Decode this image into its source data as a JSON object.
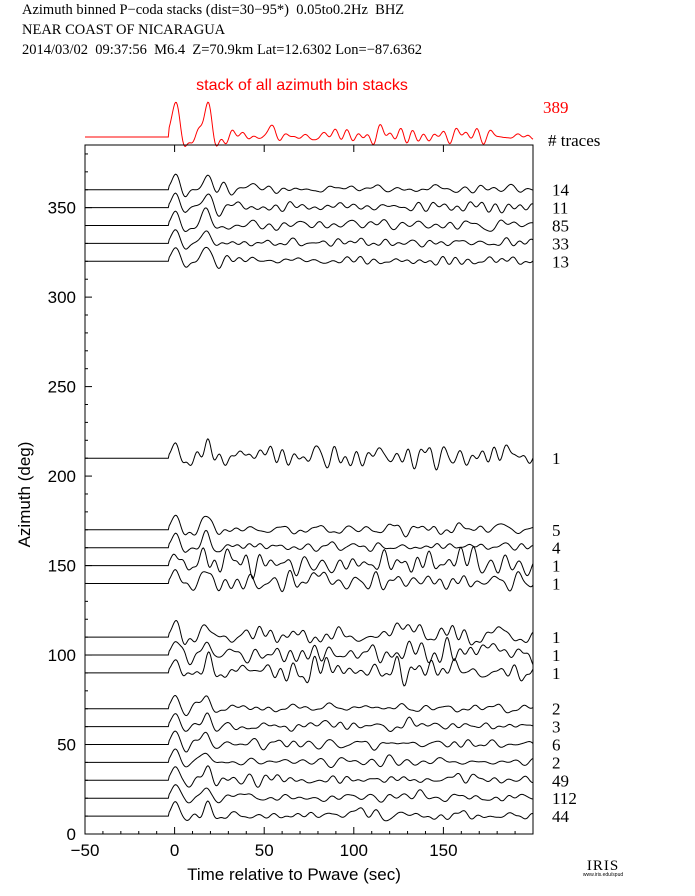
{
  "header": {
    "line1": "Azimuth binned P−coda stacks (dist=30−95*)  0.05to0.2Hz  BHZ",
    "line2": "NEAR COAST OF NICARAGUA",
    "line3": "2014/03/02  09:37:56  M6.4  Z=70.9km Lat=12.6302 Lon=−87.6362"
  },
  "logo": {
    "text": "IRIS",
    "sub": "www.iris.edu/spud"
  },
  "chart_data": {
    "type": "line",
    "title": "Azimuth binned P−coda stacks (dist=30−95*)  0.05to0.2Hz  BHZ",
    "xlabel": "Time relative to Pwave (sec)",
    "ylabel": "Azimuth (deg)",
    "xlim": [
      -50,
      200
    ],
    "ylim": [
      0,
      385
    ],
    "xticks": [
      -50,
      0,
      50,
      100,
      150
    ],
    "yticks": [
      0,
      50,
      100,
      150,
      200,
      250,
      300,
      350
    ],
    "grid": false,
    "trace_count_header": "# traces",
    "stack": {
      "label": "stack of all azimuth bin stacks",
      "count": "389",
      "color": "#ff0000"
    },
    "series": [
      {
        "azimuth": 360,
        "count": "14"
      },
      {
        "azimuth": 350,
        "count": "11"
      },
      {
        "azimuth": 340,
        "count": "85"
      },
      {
        "azimuth": 330,
        "count": "33"
      },
      {
        "azimuth": 320,
        "count": "13"
      },
      {
        "azimuth": 210,
        "count": "1"
      },
      {
        "azimuth": 170,
        "count": "5"
      },
      {
        "azimuth": 160,
        "count": "4"
      },
      {
        "azimuth": 150,
        "count": "1"
      },
      {
        "azimuth": 140,
        "count": "1"
      },
      {
        "azimuth": 110,
        "count": "1"
      },
      {
        "azimuth": 100,
        "count": "1"
      },
      {
        "azimuth": 90,
        "count": "1"
      },
      {
        "azimuth": 70,
        "count": "2"
      },
      {
        "azimuth": 60,
        "count": "3"
      },
      {
        "azimuth": 50,
        "count": "6"
      },
      {
        "azimuth": 40,
        "count": "2"
      },
      {
        "azimuth": 30,
        "count": "49"
      },
      {
        "azimuth": 20,
        "count": "112"
      },
      {
        "azimuth": 10,
        "count": "44"
      }
    ]
  }
}
